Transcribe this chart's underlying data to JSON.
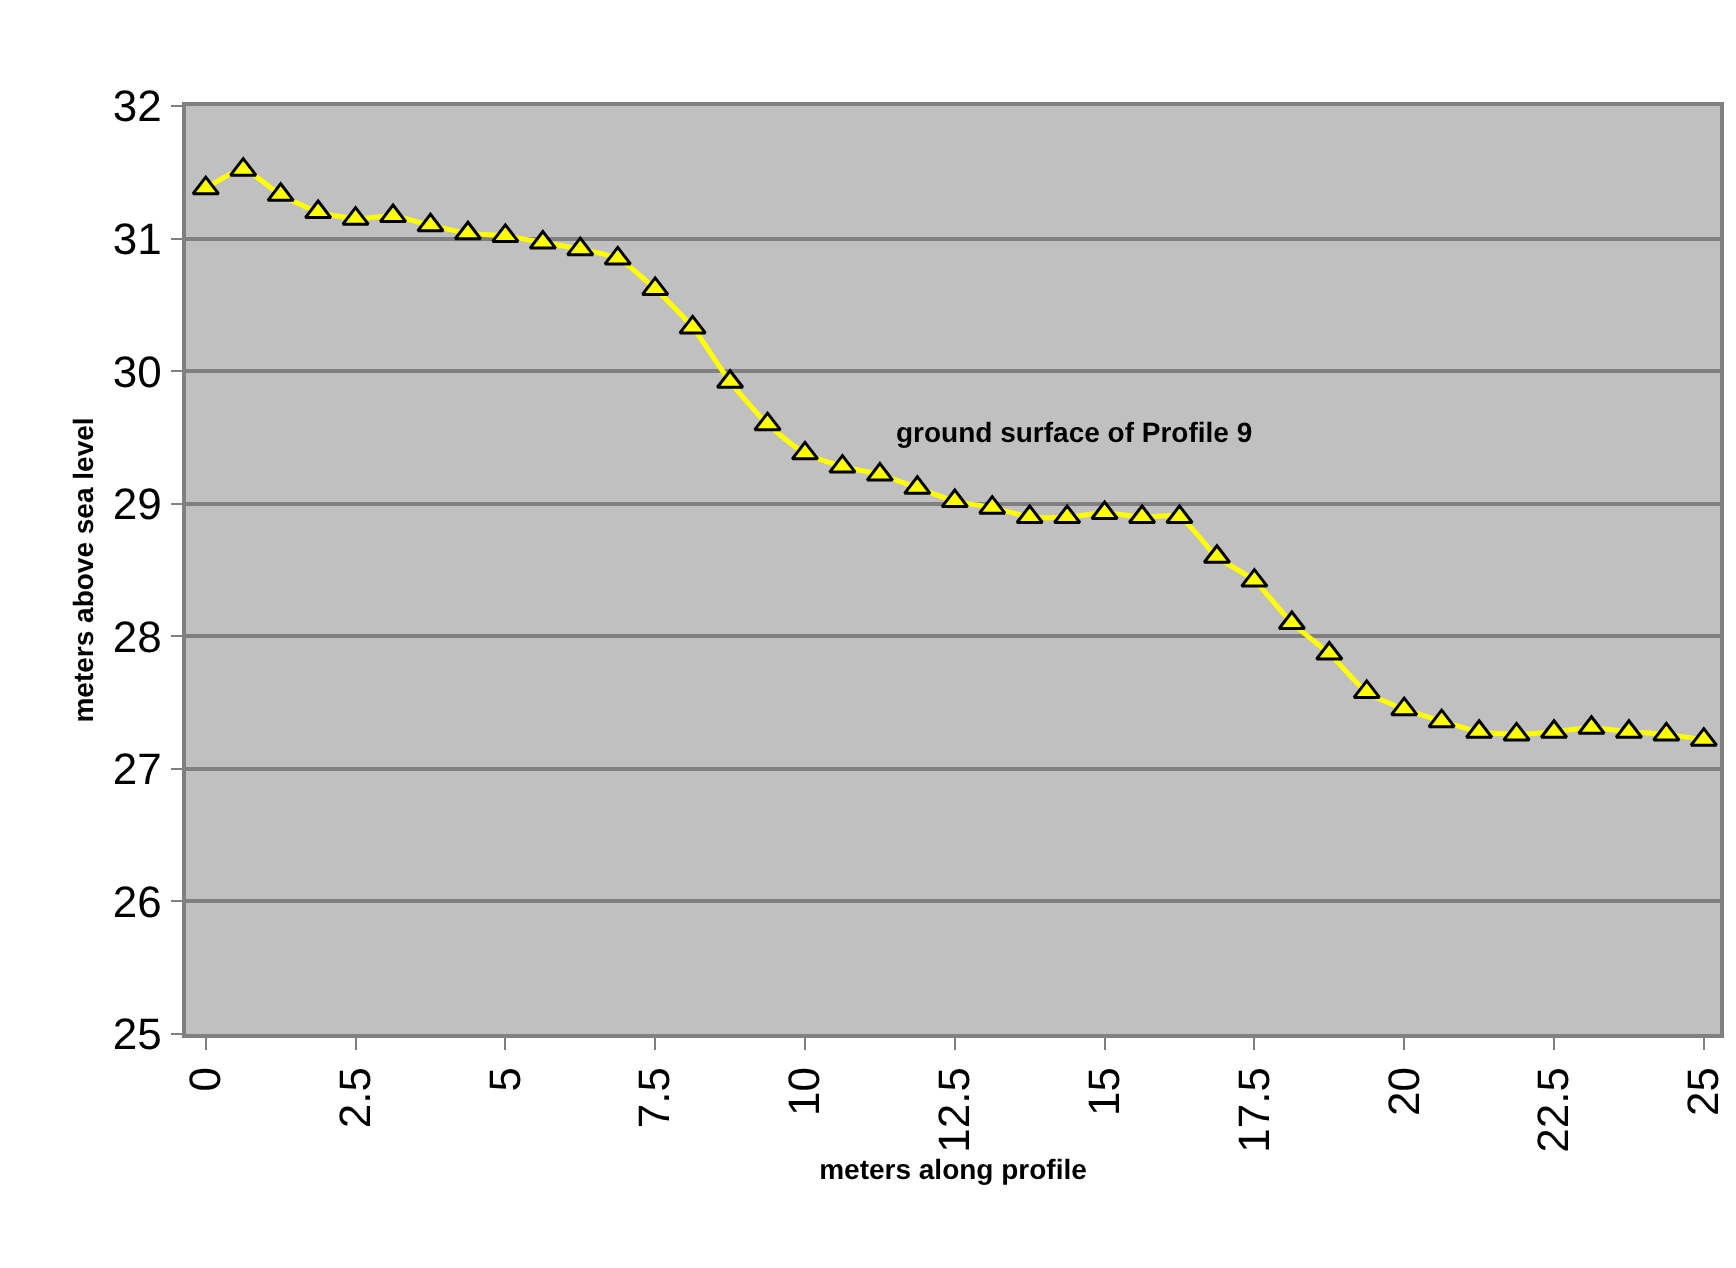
{
  "chart_data": {
    "type": "line",
    "xlabel": "meters along profile",
    "ylabel": "meters above sea level",
    "annotations": [
      "ground surface of Profile 9"
    ],
    "x": [
      0,
      0.625,
      1.25,
      1.875,
      2.5,
      3.125,
      3.75,
      4.375,
      5,
      5.625,
      6.25,
      6.875,
      7.5,
      8.125,
      8.75,
      9.375,
      10,
      10.625,
      11.25,
      11.875,
      12.5,
      13.125,
      13.75,
      14.375,
      15,
      15.625,
      16.25,
      16.875,
      17.5,
      18.125,
      18.75,
      19.375,
      20,
      20.625,
      21.25,
      21.875,
      22.5,
      23.125,
      23.75,
      24.375,
      25
    ],
    "series": [
      {
        "color": "#ffff00",
        "values": [
          31.38,
          31.52,
          31.33,
          31.2,
          31.15,
          31.17,
          31.1,
          31.04,
          31.02,
          30.97,
          30.92,
          30.85,
          30.62,
          30.33,
          29.92,
          29.6,
          29.38,
          29.28,
          29.22,
          29.12,
          29.02,
          28.97,
          28.9,
          28.9,
          28.93,
          28.9,
          28.9,
          28.6,
          28.42,
          28.1,
          27.87,
          27.58,
          27.45,
          27.36,
          27.28,
          27.26,
          27.28,
          27.31,
          27.28,
          27.26,
          27.22
        ]
      }
    ],
    "xlim": [
      -0.33,
      25.27
    ],
    "xticks": [
      0,
      2.5,
      5,
      7.5,
      10,
      12.5,
      15,
      17.5,
      20,
      22.5,
      25
    ],
    "ylim": [
      25,
      32
    ],
    "yticks": [
      25,
      26,
      27,
      28,
      29,
      30,
      31,
      32
    ],
    "grid": "y",
    "marker": "triangle",
    "line_style": "solid"
  }
}
